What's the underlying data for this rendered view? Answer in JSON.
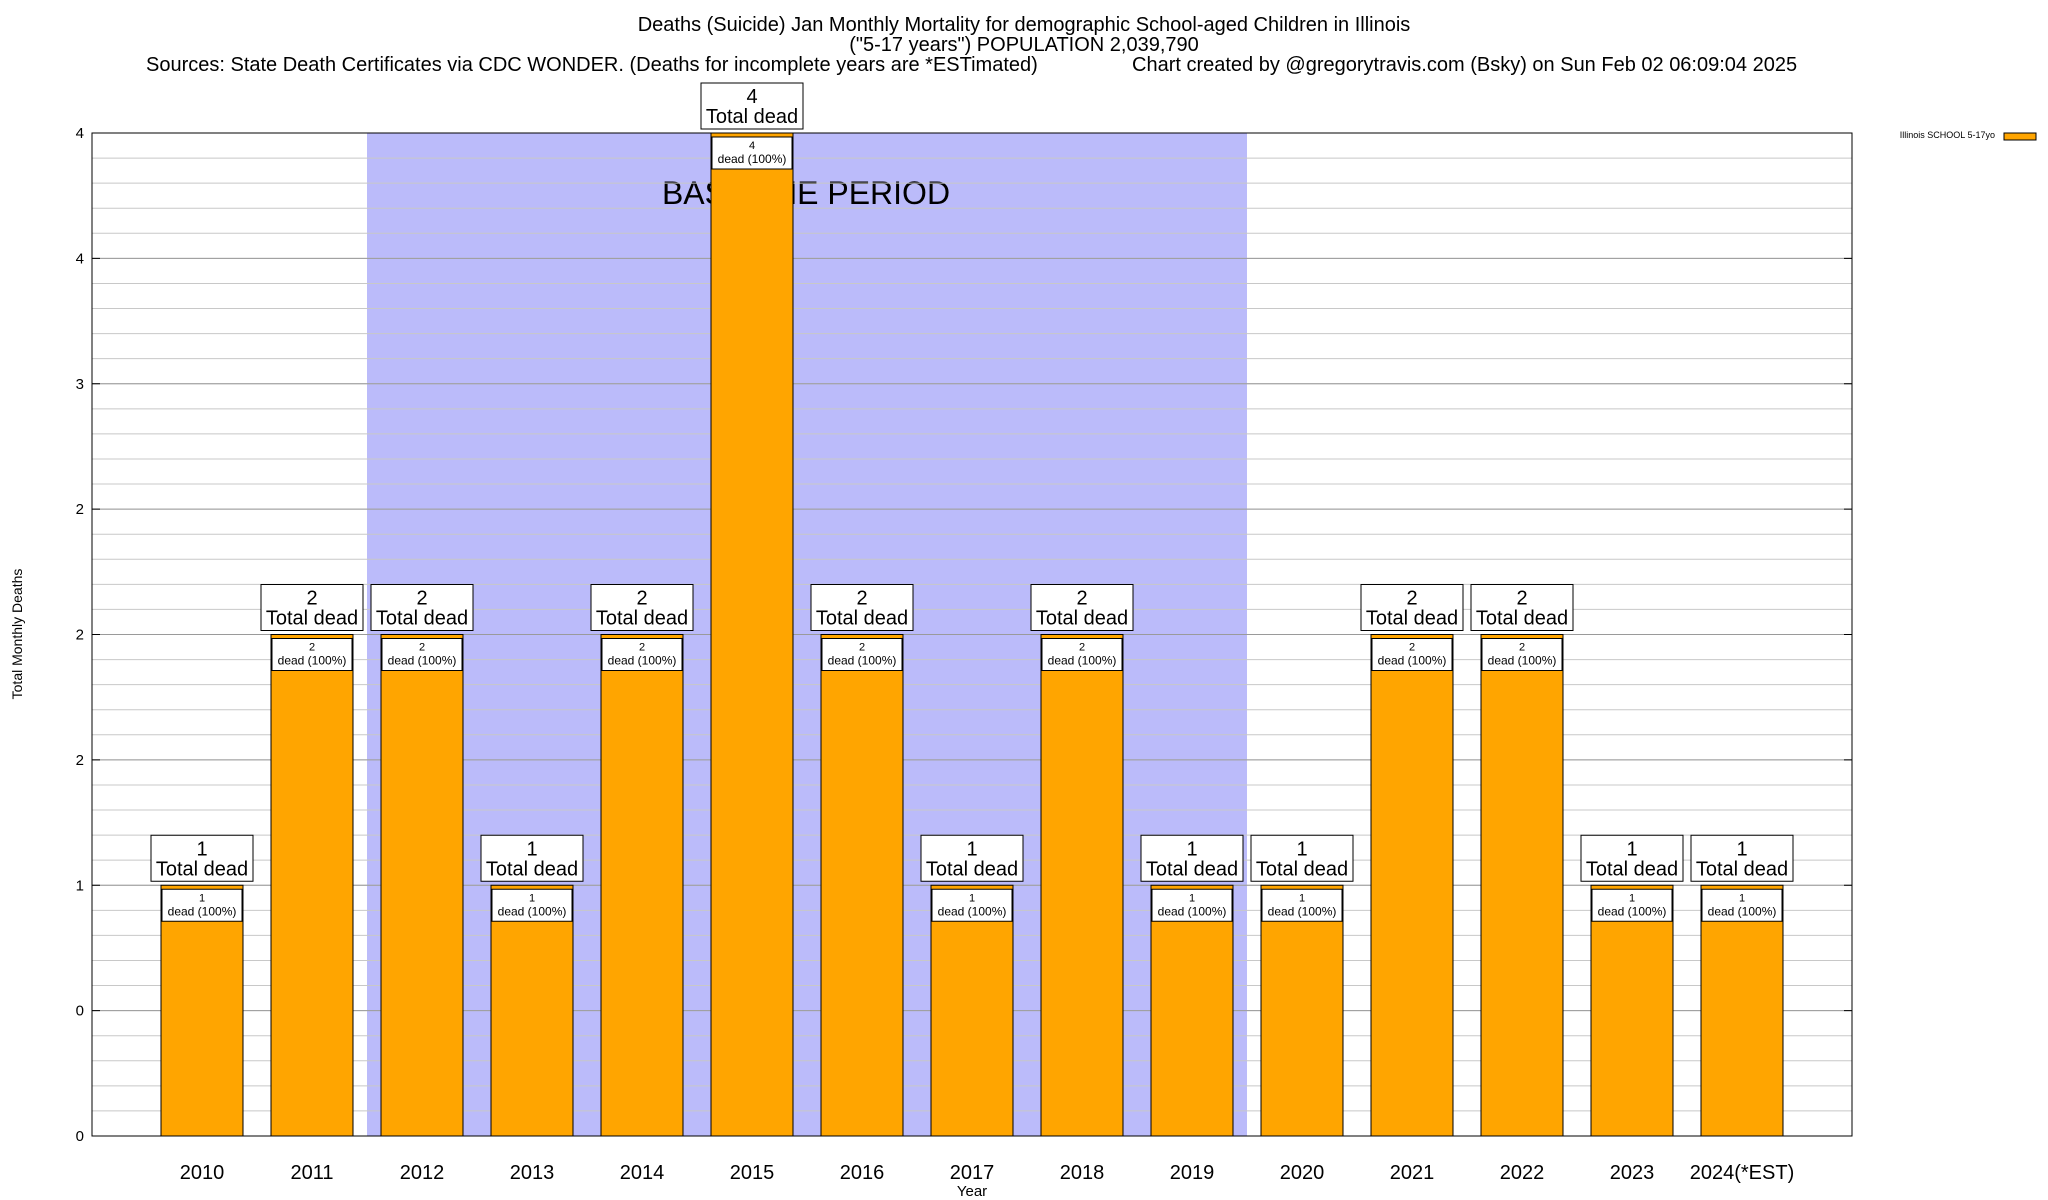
{
  "chart_data": {
    "type": "bar",
    "title": "Deaths (Suicide) Jan Monthly Mortality for demographic School-aged Children in Illinois",
    "subtitle": "(\"5-17 years\") POPULATION 2,039,790",
    "sources": "Sources: State Death Certificates via CDC WONDER. (Deaths for incomplete years are *ESTimated)",
    "credit": "Chart created by @gregorytravis.com (Bsky) on Sun Feb 02 06:09:04 2025",
    "xlabel": "Year",
    "ylabel": "Total Monthly Deaths",
    "categories": [
      "2010",
      "2011",
      "2012",
      "2013",
      "2014",
      "2015",
      "2016",
      "2017",
      "2018",
      "2019",
      "2020",
      "2021",
      "2022",
      "2023",
      "2024(*EST)"
    ],
    "series": [
      {
        "name": "Illinois SCHOOL 5-17yo",
        "values": [
          1,
          2,
          2,
          1,
          2,
          4,
          2,
          1,
          2,
          1,
          1,
          2,
          2,
          1,
          1
        ]
      }
    ],
    "ylim": [
      0,
      4
    ],
    "y_ticks": [
      0,
      0.5,
      1,
      1.5,
      2,
      2.5,
      3,
      3.5,
      4
    ],
    "y_tick_labels": [
      "0",
      "0",
      "1",
      "2",
      "2",
      "2",
      "3",
      "4",
      "4"
    ],
    "grid": true,
    "legend_position": "top-right",
    "baseline_period": {
      "label": "BASELINE PERIOD",
      "from": "2012",
      "to": "2019",
      "color": "#bbbbfa"
    },
    "bar_color": "#ffa500",
    "total_label_suffix": "Total dead",
    "inner_label_suffix": "dead (100%)"
  }
}
